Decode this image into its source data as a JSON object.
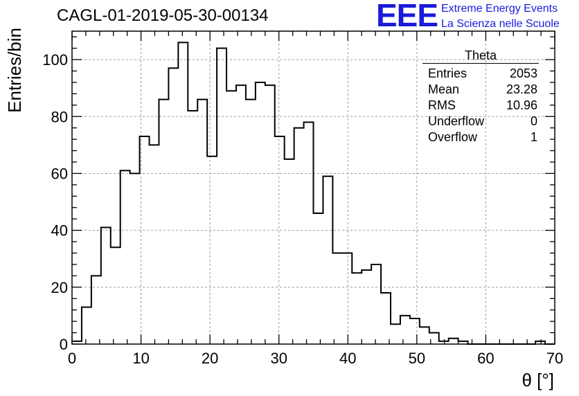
{
  "run_title": "CAGL-01-2019-05-30-00134",
  "logo": {
    "mark": "EEE",
    "line1": "Extreme Energy Events",
    "line2": "La Scienza nelle Scuole",
    "color": "#1a1adb"
  },
  "stats_box": {
    "name": "Theta",
    "rows": [
      {
        "label": "Entries",
        "value": "2053"
      },
      {
        "label": "Mean",
        "value": "23.28"
      },
      {
        "label": "RMS",
        "value": "10.96"
      },
      {
        "label": "Underflow",
        "value": "0"
      },
      {
        "label": "Overflow",
        "value": "1"
      }
    ]
  },
  "chart_data": {
    "type": "bar",
    "title": "CAGL-01-2019-05-30-00134",
    "xlabel": "θ [°]",
    "ylabel": "Entries/bin",
    "xlim": [
      0,
      70
    ],
    "ylim": [
      0,
      110
    ],
    "grid": true,
    "bin_width": 1.4,
    "bin_edges_start": 0,
    "xticks": [
      0,
      10,
      20,
      30,
      40,
      50,
      60,
      70
    ],
    "yticks": [
      0,
      20,
      40,
      60,
      80,
      100
    ],
    "values": [
      1,
      13,
      24,
      41,
      34,
      61,
      60,
      73,
      70,
      86,
      97,
      106,
      82,
      86,
      66,
      104,
      89,
      91,
      86,
      92,
      91,
      73,
      65,
      76,
      78,
      46,
      59,
      32,
      32,
      25,
      26,
      28,
      18,
      7,
      10,
      9,
      6,
      4,
      1,
      2,
      1,
      0,
      0,
      0,
      0,
      0,
      0,
      0,
      1,
      0
    ]
  }
}
